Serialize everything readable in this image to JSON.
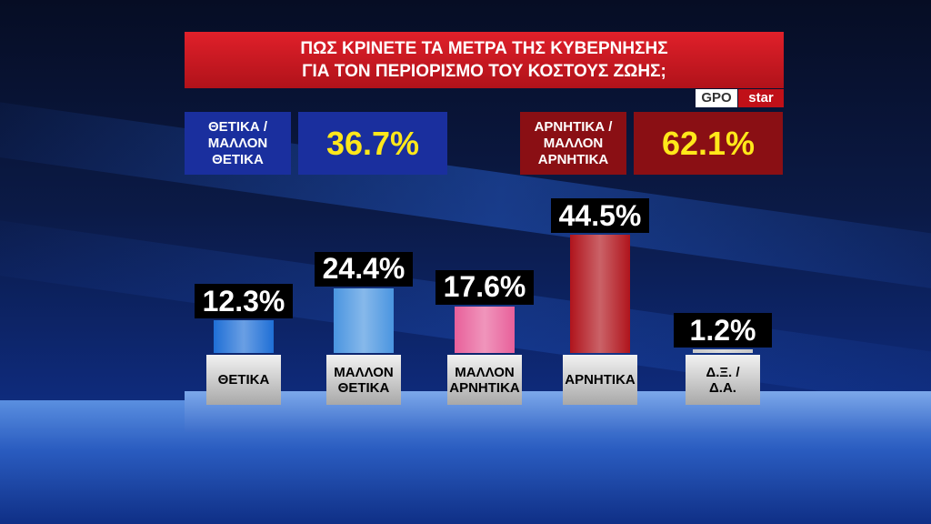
{
  "chart_data": {
    "type": "bar",
    "title": [
      "ΠΩΣ ΚΡΙΝΕΤΕ ΤΑ ΜΕΤΡΑ ΤΗΣ ΚΥΒΕΡΝΗΣΗΣ",
      "ΓΙΑ ΤΟΝ ΠΕΡΙΟΡΙΣΜΟ ΤΟΥ ΚΟΣΤΟΥΣ ΖΩΗΣ;"
    ],
    "branding": [
      "GPO",
      "star"
    ],
    "summary": [
      {
        "label": "ΘΕΤΙΚΑ / ΜΑΛΛΟΝ ΘΕΤΙΚΑ",
        "value": 36.7,
        "value_label": "36.7%",
        "color": "#1a2f9e"
      },
      {
        "label": "ΑΡΝΗΤΙΚΑ / ΜΑΛΛΟΝ ΑΡΝΗΤΙΚΑ",
        "value": 62.1,
        "value_label": "62.1%",
        "color": "#8a0f14"
      }
    ],
    "categories": [
      "ΘΕΤΙΚΑ",
      "ΜΑΛΛΟΝ ΘΕΤΙΚΑ",
      "ΜΑΛΛΟΝ ΑΡΝΗΤΙΚΑ",
      "ΑΡΝΗΤΙΚΑ",
      "Δ.Ξ. / Δ.Α."
    ],
    "values": [
      12.3,
      24.4,
      17.6,
      44.5,
      1.2
    ],
    "value_labels": [
      "12.3%",
      "24.4%",
      "17.6%",
      "44.5%",
      "1.2%"
    ],
    "colors": [
      "#1f6fd6",
      "#4a95e0",
      "#e8609a",
      "#b0141c",
      "#c8c8c8"
    ]
  }
}
